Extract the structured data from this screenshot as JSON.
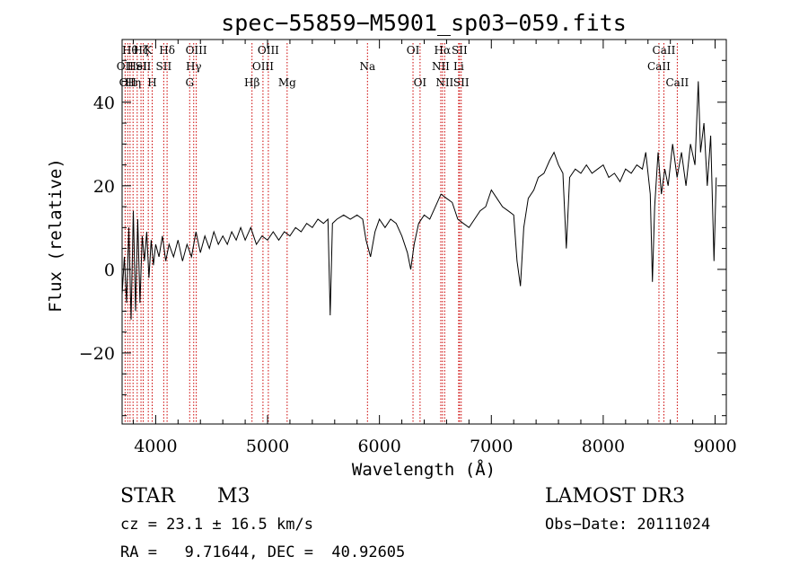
{
  "chart_data": {
    "type": "line",
    "title": "spec−55859−M5901_sp03−059.fits",
    "xlabel": "Wavelength (Å)",
    "ylabel": "Flux (relative)",
    "xlim": [
      3700,
      9100
    ],
    "ylim": [
      -37,
      55
    ],
    "x_ticks": [
      4000,
      5000,
      6000,
      7000,
      8000,
      9000
    ],
    "y_ticks": [
      -20,
      0,
      20,
      40
    ],
    "x_tick_labels": [
      "4000",
      "5000",
      "6000",
      "7000",
      "8000",
      "9000"
    ],
    "y_tick_labels": [
      "−20",
      "0",
      "20",
      "40"
    ],
    "x_minor_step": 200,
    "y_minor_step": 5,
    "series": [
      {
        "name": "flux",
        "color": "#000000",
        "points": [
          [
            3700,
            -6
          ],
          [
            3720,
            3
          ],
          [
            3740,
            -8
          ],
          [
            3760,
            10
          ],
          [
            3780,
            -12
          ],
          [
            3800,
            14
          ],
          [
            3820,
            -10
          ],
          [
            3840,
            12
          ],
          [
            3860,
            -8
          ],
          [
            3880,
            8
          ],
          [
            3900,
            2
          ],
          [
            3920,
            9
          ],
          [
            3940,
            -2
          ],
          [
            3960,
            7
          ],
          [
            3980,
            1
          ],
          [
            4000,
            6
          ],
          [
            4030,
            3
          ],
          [
            4060,
            8
          ],
          [
            4090,
            2
          ],
          [
            4120,
            6
          ],
          [
            4160,
            3
          ],
          [
            4200,
            7
          ],
          [
            4240,
            2
          ],
          [
            4280,
            6
          ],
          [
            4320,
            3
          ],
          [
            4360,
            9
          ],
          [
            4400,
            4
          ],
          [
            4440,
            8
          ],
          [
            4480,
            5
          ],
          [
            4520,
            9
          ],
          [
            4560,
            6
          ],
          [
            4600,
            8
          ],
          [
            4640,
            6
          ],
          [
            4680,
            9
          ],
          [
            4720,
            7
          ],
          [
            4760,
            10
          ],
          [
            4800,
            7
          ],
          [
            4850,
            10
          ],
          [
            4900,
            6
          ],
          [
            4950,
            8
          ],
          [
            5000,
            7
          ],
          [
            5050,
            9
          ],
          [
            5100,
            7
          ],
          [
            5150,
            9
          ],
          [
            5200,
            8
          ],
          [
            5250,
            10
          ],
          [
            5300,
            9
          ],
          [
            5350,
            11
          ],
          [
            5400,
            10
          ],
          [
            5450,
            12
          ],
          [
            5500,
            11
          ],
          [
            5540,
            12
          ],
          [
            5560,
            -11
          ],
          [
            5580,
            11
          ],
          [
            5620,
            12
          ],
          [
            5680,
            13
          ],
          [
            5740,
            12
          ],
          [
            5800,
            13
          ],
          [
            5850,
            12
          ],
          [
            5880,
            7
          ],
          [
            5920,
            3
          ],
          [
            5960,
            9
          ],
          [
            6000,
            12
          ],
          [
            6050,
            10
          ],
          [
            6100,
            12
          ],
          [
            6150,
            11
          ],
          [
            6200,
            8
          ],
          [
            6250,
            4
          ],
          [
            6280,
            0
          ],
          [
            6310,
            6
          ],
          [
            6350,
            11
          ],
          [
            6400,
            13
          ],
          [
            6450,
            12
          ],
          [
            6500,
            15
          ],
          [
            6550,
            18
          ],
          [
            6600,
            17
          ],
          [
            6650,
            16
          ],
          [
            6700,
            12
          ],
          [
            6750,
            11
          ],
          [
            6800,
            10
          ],
          [
            6850,
            12
          ],
          [
            6900,
            14
          ],
          [
            6950,
            15
          ],
          [
            7000,
            19
          ],
          [
            7050,
            17
          ],
          [
            7100,
            15
          ],
          [
            7150,
            14
          ],
          [
            7200,
            13
          ],
          [
            7230,
            2
          ],
          [
            7260,
            -4
          ],
          [
            7290,
            10
          ],
          [
            7330,
            17
          ],
          [
            7380,
            19
          ],
          [
            7420,
            22
          ],
          [
            7470,
            23
          ],
          [
            7520,
            26
          ],
          [
            7560,
            28
          ],
          [
            7600,
            25
          ],
          [
            7640,
            23
          ],
          [
            7670,
            5
          ],
          [
            7700,
            22
          ],
          [
            7750,
            24
          ],
          [
            7800,
            23
          ],
          [
            7850,
            25
          ],
          [
            7900,
            23
          ],
          [
            7950,
            24
          ],
          [
            8000,
            25
          ],
          [
            8050,
            22
          ],
          [
            8100,
            23
          ],
          [
            8150,
            21
          ],
          [
            8200,
            24
          ],
          [
            8250,
            23
          ],
          [
            8300,
            25
          ],
          [
            8350,
            24
          ],
          [
            8380,
            28
          ],
          [
            8420,
            18
          ],
          [
            8440,
            -3
          ],
          [
            8460,
            15
          ],
          [
            8490,
            28
          ],
          [
            8520,
            18
          ],
          [
            8550,
            24
          ],
          [
            8580,
            20
          ],
          [
            8620,
            30
          ],
          [
            8660,
            22
          ],
          [
            8700,
            28
          ],
          [
            8740,
            20
          ],
          [
            8780,
            30
          ],
          [
            8820,
            25
          ],
          [
            8850,
            45
          ],
          [
            8870,
            28
          ],
          [
            8900,
            35
          ],
          [
            8930,
            20
          ],
          [
            8960,
            32
          ],
          [
            8990,
            2
          ],
          [
            9010,
            22
          ]
        ]
      }
    ],
    "lines": [
      {
        "wl": 3727,
        "label": "OII",
        "row": 2
      },
      {
        "wl": 3750,
        "label": "OII",
        "row": 3
      },
      {
        "wl": 3771,
        "label": "Hθ",
        "row": 1
      },
      {
        "wl": 3798,
        "label": "Hη",
        "row": 3
      },
      {
        "wl": 3835,
        "label": "HeI",
        "row": 2
      },
      {
        "wl": 3869,
        "label": "Hζ",
        "row": 1
      },
      {
        "wl": 3889,
        "label": "SII",
        "row": 2
      },
      {
        "wl": 3934,
        "label": "K",
        "row": 1
      },
      {
        "wl": 3969,
        "label": "H",
        "row": 3
      },
      {
        "wl": 4072,
        "label": "SII",
        "row": 2
      },
      {
        "wl": 4102,
        "label": "Hδ",
        "row": 1
      },
      {
        "wl": 4304,
        "label": "G",
        "row": 3
      },
      {
        "wl": 4340,
        "label": "Hγ",
        "row": 2
      },
      {
        "wl": 4363,
        "label": "OIII",
        "row": 1
      },
      {
        "wl": 4861,
        "label": "Hβ",
        "row": 3
      },
      {
        "wl": 4959,
        "label": "OIII",
        "row": 2
      },
      {
        "wl": 5007,
        "label": "OIII",
        "row": 1
      },
      {
        "wl": 5175,
        "label": "Mg",
        "row": 3
      },
      {
        "wl": 5893,
        "label": "Na",
        "row": 2
      },
      {
        "wl": 6300,
        "label": "OI",
        "row": 1
      },
      {
        "wl": 6363,
        "label": "OI",
        "row": 3
      },
      {
        "wl": 6548,
        "label": "NII",
        "row": 2
      },
      {
        "wl": 6563,
        "label": "Hα",
        "row": 1
      },
      {
        "wl": 6583,
        "label": "NII",
        "row": 3
      },
      {
        "wl": 6708,
        "label": "Li",
        "row": 2
      },
      {
        "wl": 6716,
        "label": "SII",
        "row": 1
      },
      {
        "wl": 6731,
        "label": "SII",
        "row": 3
      },
      {
        "wl": 8498,
        "label": "CaII",
        "row": 2
      },
      {
        "wl": 8542,
        "label": "CaII",
        "row": 1
      },
      {
        "wl": 8662,
        "label": "CaII",
        "row": 3
      }
    ],
    "line_color": "#cc0000"
  },
  "footer": {
    "class_label": "STAR",
    "subclass_label": "M3",
    "survey": "LAMOST DR3",
    "cz": "cz = 23.1 ± 16.5 km/s",
    "obs_date": "Obs−Date: 20111024",
    "coords": "RA =   9.71644, DEC =  40.92605"
  }
}
